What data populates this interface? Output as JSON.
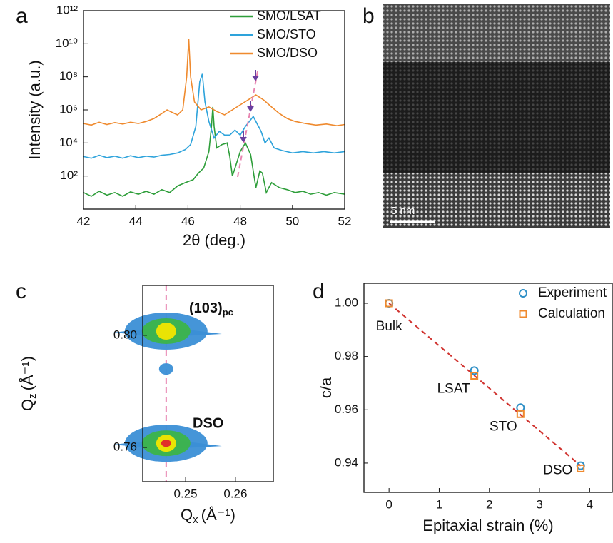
{
  "chart_data": [
    {
      "type": "line",
      "panel_label": "a",
      "x_label": "2θ (deg.)",
      "y_label": "Intensity (a.u.)",
      "xlim": [
        42,
        52
      ],
      "xticks": [
        42,
        44,
        46,
        48,
        50,
        52
      ],
      "ylim": [
        1,
        1000000000000.0
      ],
      "log_scale": true,
      "yticks": [
        {
          "value": 100,
          "label": "10²"
        },
        {
          "value": 10000,
          "label": "10⁴"
        },
        {
          "value": 1000000,
          "label": "10⁶"
        },
        {
          "value": 100000000,
          "label": "10⁸"
        },
        {
          "value": 10000000000,
          "label": "10¹⁰"
        },
        {
          "value": 1000000000000,
          "label": "10¹²"
        }
      ],
      "legend": "upper right",
      "series": [
        {
          "name": "SMO/LSAT",
          "color": "#2e9e3a",
          "x": [
            42,
            42.3,
            42.6,
            42.9,
            43.2,
            43.5,
            43.8,
            44.1,
            44.4,
            44.7,
            45.0,
            45.3,
            45.6,
            45.9,
            46.2,
            46.4,
            46.6,
            46.8,
            46.9,
            46.95,
            47.0,
            47.1,
            47.3,
            47.5,
            47.6,
            47.7,
            47.8,
            48.0,
            48.2,
            48.4,
            48.6,
            48.75,
            48.85,
            49.0,
            49.2,
            49.5,
            49.8,
            50.1,
            50.4,
            50.7,
            51.0,
            51.3,
            51.6,
            52.0
          ],
          "values": [
            10,
            6,
            12,
            7,
            10,
            6,
            11,
            8,
            12,
            8,
            15,
            10,
            25,
            40,
            60,
            150,
            300,
            3000,
            100000,
            1500000,
            100000,
            5000,
            8000,
            10000,
            1500,
            100,
            300,
            3000,
            10000,
            2000,
            20,
            200,
            150,
            10,
            40,
            20,
            15,
            10,
            12,
            8,
            10,
            7,
            10,
            8
          ]
        },
        {
          "name": "SMO/STO",
          "color": "#2ea3db",
          "x": [
            42,
            42.3,
            42.6,
            42.9,
            43.2,
            43.5,
            43.8,
            44.1,
            44.4,
            44.7,
            45.0,
            45.3,
            45.6,
            45.9,
            46.1,
            46.3,
            46.45,
            46.55,
            46.65,
            46.8,
            47.0,
            47.2,
            47.4,
            47.6,
            47.8,
            48.0,
            48.2,
            48.5,
            48.8,
            48.95,
            49.1,
            49.3,
            49.6,
            50.0,
            50.4,
            50.8,
            51.2,
            51.6,
            52.0
          ],
          "values": [
            1500,
            1200,
            1800,
            1300,
            1600,
            1200,
            1700,
            1300,
            1600,
            1400,
            1800,
            2000,
            2500,
            4000,
            8000,
            100000,
            50000000,
            150000000,
            3000000,
            200000,
            20000,
            50000,
            30000,
            30000,
            60000,
            30000,
            100000,
            400000,
            50000,
            10000,
            20000,
            5000,
            3500,
            2500,
            3000,
            2500,
            3000,
            2500,
            3000
          ]
        },
        {
          "name": "SMO/DSO",
          "color": "#ef8a2e",
          "x": [
            42,
            42.3,
            42.6,
            42.9,
            43.2,
            43.5,
            43.8,
            44.1,
            44.4,
            44.7,
            45.0,
            45.2,
            45.4,
            45.6,
            45.8,
            45.95,
            46.03,
            46.1,
            46.25,
            46.5,
            46.8,
            47.1,
            47.4,
            47.7,
            48.0,
            48.3,
            48.6,
            48.9,
            49.2,
            49.5,
            49.8,
            50.1,
            50.5,
            50.9,
            51.3,
            51.7,
            52.0
          ],
          "values": [
            150000,
            120000,
            180000,
            130000,
            170000,
            140000,
            180000,
            150000,
            200000,
            300000,
            600000,
            1000000,
            700000,
            500000,
            1000000,
            100000000,
            20000000000,
            100000000,
            3000000,
            1000000,
            1500000,
            800000,
            500000,
            1000000,
            2000000,
            4000000,
            8000000,
            4000000,
            1500000,
            600000,
            300000,
            200000,
            150000,
            120000,
            140000,
            110000,
            130000
          ]
        }
      ]
    },
    {
      "type": "image",
      "panel_label": "b",
      "scale_bar_label": "5 nm"
    },
    {
      "type": "contour",
      "panel_label": "c",
      "x_label": "Q",
      "x_label_sub": "x",
      "x_label_unit": "(Å⁻¹)",
      "y_label": "Q",
      "y_label_sub": "z",
      "y_label_unit": "(Å⁻¹)",
      "xlim": [
        0.2414,
        0.2676
      ],
      "xticks": [
        0.25,
        0.26
      ],
      "ylim": [
        0.7478,
        0.8178
      ],
      "yticks": [
        0.76,
        {
          "value": 0.8,
          "label": "0.80"
        }
      ],
      "peak_label": "(103)",
      "peak_label_sub": "pc",
      "substrate_label": "DSO",
      "x": [
        0.2461,
        0.2461,
        0.2461
      ],
      "values": [
        0.8015,
        0.788,
        0.7615
      ],
      "levels": [
        3,
        1,
        4
      ],
      "level_colors": [
        "#3b8fd6",
        "#3cb44a",
        "#f2e600",
        "#e0262b"
      ]
    },
    {
      "type": "scatter",
      "panel_label": "d",
      "x_label": "Epitaxial strain (%)",
      "y_label": "c/a",
      "xlim": [
        -0.5,
        4.45
      ],
      "xticks": [
        0,
        1,
        2,
        3,
        4
      ],
      "ylim": [
        0.929,
        1.0075
      ],
      "yticks": [
        0.94,
        0.96,
        0.98,
        {
          "value": 1.0,
          "label": "1.00"
        }
      ],
      "legend": "upper right",
      "categories": [
        "Bulk",
        "LSAT",
        "STO",
        "DSO"
      ],
      "x": [
        0,
        1.7,
        2.62,
        3.82
      ],
      "fit_color": "#d0312d",
      "series": [
        {
          "name": "Experiment",
          "color": "#2e8fc6",
          "marker": "circle",
          "values": [
            1.0,
            0.9747,
            0.9608,
            0.939
          ]
        },
        {
          "name": "Calculation",
          "color": "#ef8a2e",
          "marker": "square",
          "values": [
            1.0,
            0.9728,
            0.9584,
            0.938
          ]
        }
      ]
    }
  ]
}
